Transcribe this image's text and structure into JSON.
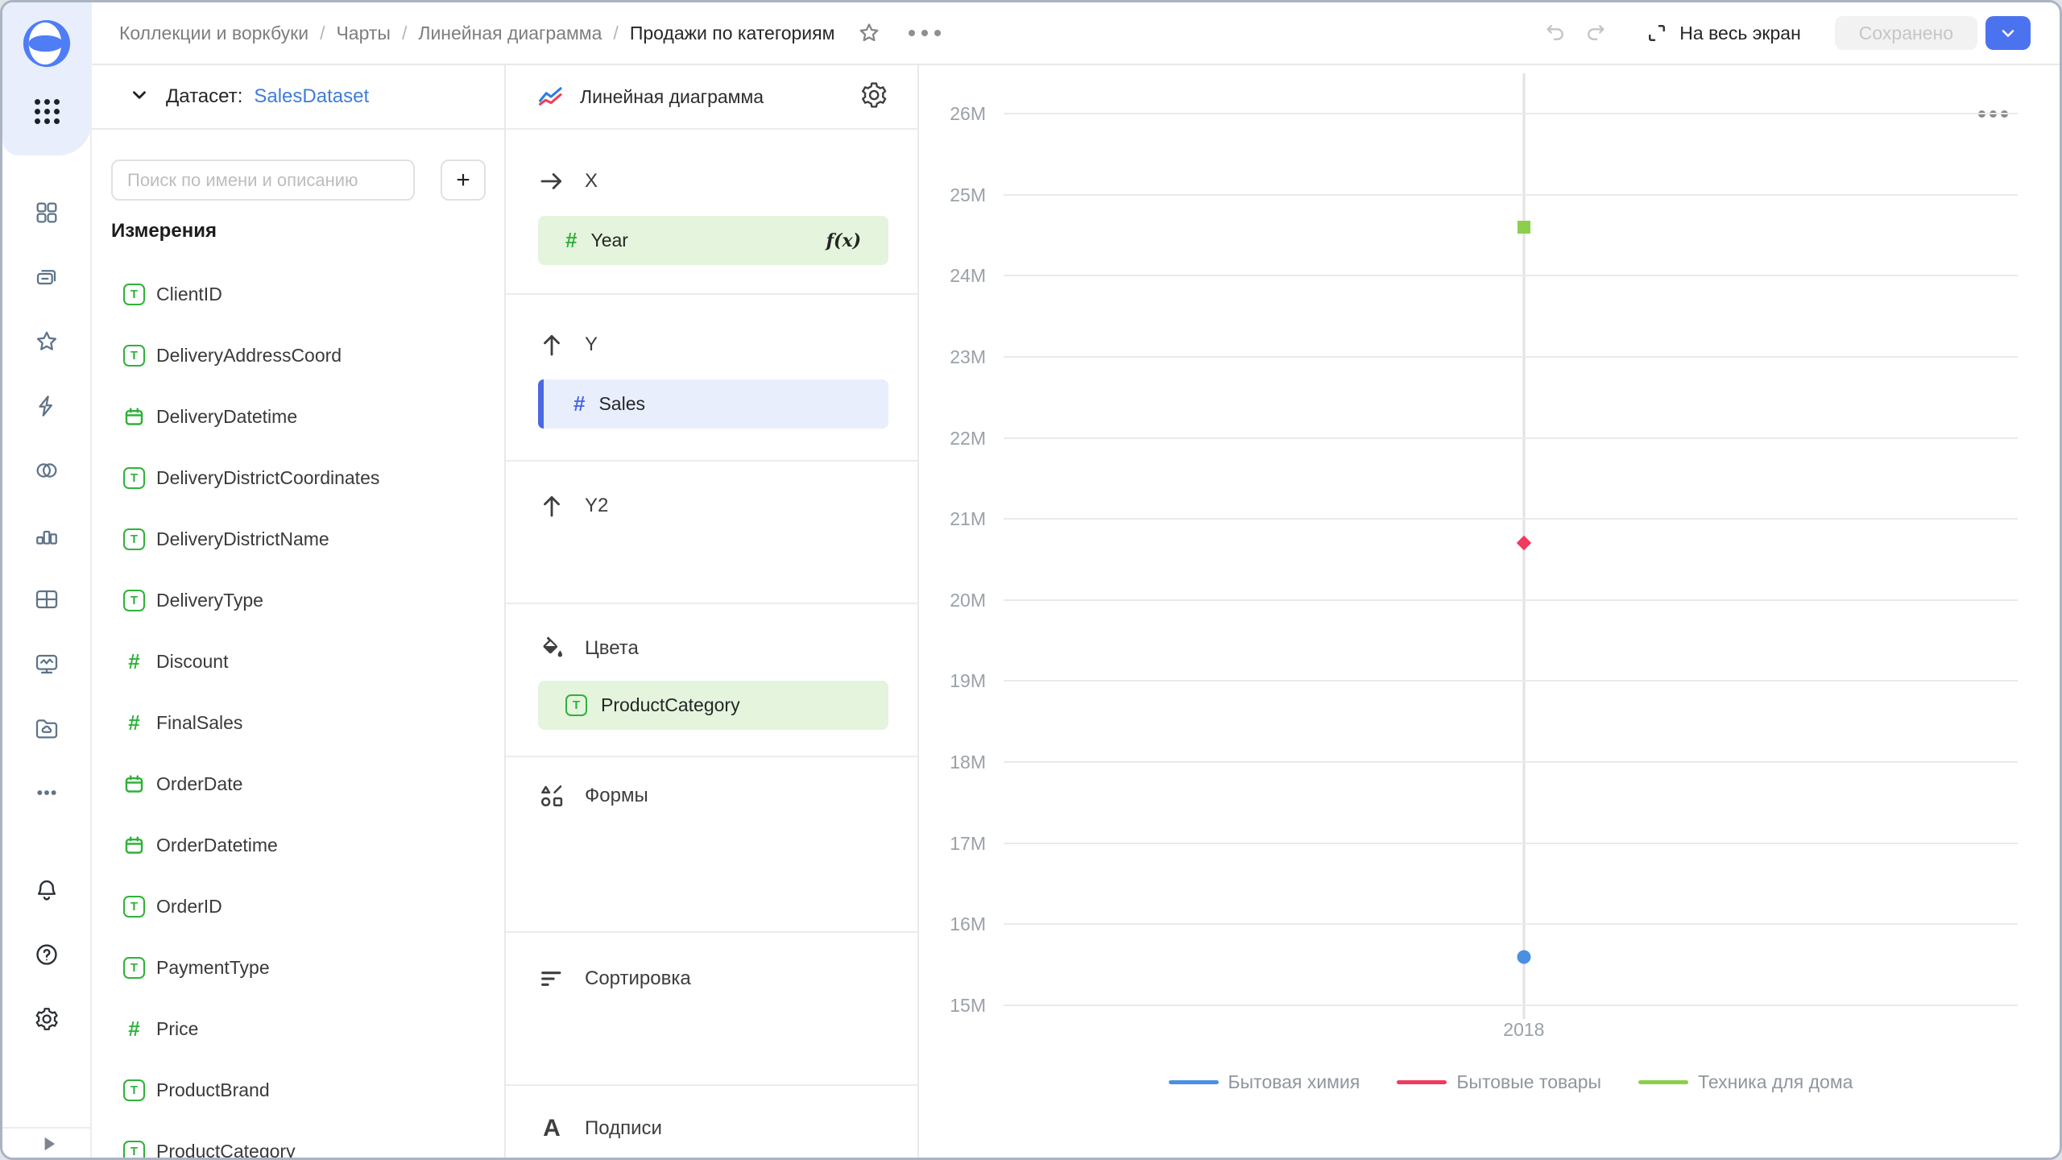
{
  "topbar": {
    "breadcrumbs": [
      "Коллекции и воркбуки",
      "Чарты",
      "Линейная диаграмма",
      "Продажи по категориям"
    ],
    "separator": "/",
    "fullscreen_label": "На весь экран",
    "save_button": "Сохранено"
  },
  "dataset_panel": {
    "dataset_label": "Датасет:",
    "dataset_name": "SalesDataset",
    "search_placeholder": "Поиск по имени и описанию",
    "add_button": "+",
    "dimensions_title": "Измерения",
    "fields": [
      {
        "name": "ClientID",
        "type": "text"
      },
      {
        "name": "DeliveryAddressCoord",
        "type": "text"
      },
      {
        "name": "DeliveryDatetime",
        "type": "date"
      },
      {
        "name": "DeliveryDistrictCoordinates",
        "type": "text"
      },
      {
        "name": "DeliveryDistrictName",
        "type": "text"
      },
      {
        "name": "DeliveryType",
        "type": "text"
      },
      {
        "name": "Discount",
        "type": "number"
      },
      {
        "name": "FinalSales",
        "type": "number"
      },
      {
        "name": "OrderDate",
        "type": "date"
      },
      {
        "name": "OrderDatetime",
        "type": "date"
      },
      {
        "name": "OrderID",
        "type": "text"
      },
      {
        "name": "PaymentType",
        "type": "text"
      },
      {
        "name": "Price",
        "type": "number"
      },
      {
        "name": "ProductBrand",
        "type": "text"
      },
      {
        "name": "ProductCategory",
        "type": "text"
      }
    ]
  },
  "config_panel": {
    "chart_type": "Линейная диаграмма",
    "x_section": {
      "label": "X",
      "field": "Year",
      "badge": "f(x)"
    },
    "y_section": {
      "label": "Y",
      "field": "Sales"
    },
    "y2_section": {
      "label": "Y2"
    },
    "colors_section": {
      "label": "Цвета",
      "field": "ProductCategory"
    },
    "shapes_section": {
      "label": "Формы"
    },
    "sort_section": {
      "label": "Сортировка"
    },
    "labels_section": {
      "label": "Подписи"
    }
  },
  "icon_glyphs": {
    "text": "T",
    "number": "#",
    "labels": "A"
  },
  "chart_data": {
    "type": "line",
    "x": [
      "2018"
    ],
    "series": [
      {
        "name": "Бытовая химия",
        "color": "#4a90e2",
        "marker": "circle",
        "values_millions": [
          15.6
        ]
      },
      {
        "name": "Бытовые товары",
        "color": "#f13a5e",
        "marker": "diamond",
        "values_millions": [
          20.7
        ]
      },
      {
        "name": "Техника для дома",
        "color": "#8ccf4d",
        "marker": "square",
        "values_millions": [
          24.6
        ]
      }
    ],
    "ylim_millions": [
      15,
      26
    ],
    "yticks": [
      "26M",
      "25M",
      "24M",
      "23M",
      "22M",
      "21M",
      "20M",
      "19M",
      "18M",
      "17M",
      "16M",
      "15M"
    ],
    "grid": "horizontal",
    "legend_position": "bottom"
  },
  "colors": {
    "accent_blue": "#4c73ef",
    "field_green": "#2fb239",
    "measure_blue": "#4a68e1",
    "chip_green_bg": "#e4f4dd",
    "chip_blue_bg": "#e9eefc"
  }
}
